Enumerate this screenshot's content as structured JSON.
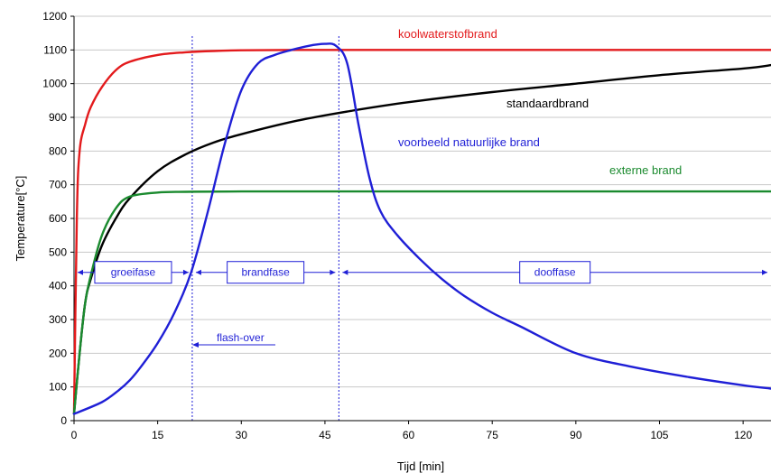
{
  "chart_data": {
    "type": "line",
    "xlabel": "Tijd [min]",
    "ylabel": "Temperature[°C]",
    "xlim": [
      0,
      125
    ],
    "ylim": [
      0,
      1200
    ],
    "x_ticks": [
      0,
      15,
      30,
      45,
      60,
      75,
      90,
      105,
      120
    ],
    "y_ticks": [
      0,
      100,
      200,
      300,
      400,
      500,
      600,
      700,
      800,
      900,
      1000,
      1100,
      1200
    ],
    "grid": "horizontal",
    "series": [
      {
        "name": "koolwaterstofbrand",
        "color": "#e31a1c",
        "x": [
          0,
          0.5,
          1,
          2,
          3,
          5,
          7.5,
          10,
          15,
          20,
          25,
          30,
          40,
          60,
          90,
          125
        ],
        "y": [
          20,
          600,
          800,
          880,
          930,
          990,
          1040,
          1065,
          1085,
          1093,
          1097,
          1099,
          1100,
          1100,
          1100,
          1100
        ]
      },
      {
        "name": "standaardbrand",
        "color": "#000000",
        "x": [
          0,
          1,
          2,
          3,
          5,
          7.5,
          10,
          15,
          20,
          25,
          30,
          40,
          50,
          60,
          75,
          90,
          105,
          120,
          125
        ],
        "y": [
          20,
          200,
          350,
          420,
          520,
          600,
          660,
          740,
          790,
          825,
          850,
          890,
          920,
          945,
          975,
          1000,
          1025,
          1045,
          1055
        ]
      },
      {
        "name": "externe brand",
        "color": "#1a8a2e",
        "x": [
          0,
          1,
          2,
          3,
          5,
          7.5,
          10,
          15,
          20,
          30,
          60,
          90,
          125
        ],
        "y": [
          20,
          200,
          350,
          430,
          550,
          630,
          665,
          677,
          679,
          680,
          680,
          680,
          680
        ]
      },
      {
        "name": "voorbeeld natuurlijke brand",
        "color": "#1f1fd6",
        "x": [
          0,
          5,
          8,
          10,
          12,
          15,
          18,
          21,
          24,
          27,
          30,
          33,
          36,
          39,
          42,
          45,
          47,
          49,
          51,
          53,
          55,
          58,
          62,
          66,
          70,
          75,
          80,
          90,
          100,
          110,
          120,
          125
        ],
        "y": [
          20,
          55,
          90,
          120,
          160,
          230,
          320,
          440,
          620,
          820,
          980,
          1060,
          1085,
          1100,
          1112,
          1118,
          1112,
          1060,
          880,
          720,
          620,
          550,
          480,
          420,
          370,
          320,
          280,
          200,
          160,
          130,
          105,
          95
        ]
      }
    ],
    "vertical_lines": [
      {
        "x": 21.2,
        "color": "#1f1fd6"
      },
      {
        "x": 47.5,
        "color": "#1f1fd6"
      }
    ],
    "phase_y": 440,
    "phases": [
      {
        "label": "groeifase",
        "from": 0,
        "to": 21.2
      },
      {
        "label": "brandfase",
        "from": 21.2,
        "to": 47.5
      },
      {
        "label": "dooffase",
        "from": 47.5,
        "to": 125
      }
    ],
    "annotations": {
      "koolwaterstofbrand": "koolwaterstofbrand",
      "standaardbrand": "standaardbrand",
      "natuurlijke": "voorbeeld natuurlijke brand",
      "externe": "externe brand",
      "flashover": "flash-over"
    }
  }
}
